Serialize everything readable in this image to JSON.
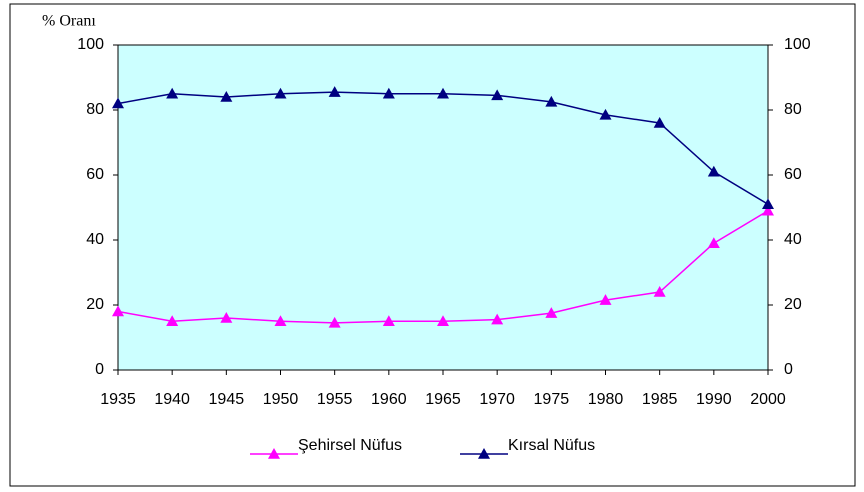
{
  "chart_data": {
    "type": "line",
    "y_label": "% Oranı",
    "categories": [
      "1935",
      "1940",
      "1945",
      "1950",
      "1955",
      "1960",
      "1965",
      "1970",
      "1975",
      "1980",
      "1985",
      "1990",
      "2000"
    ],
    "series": [
      {
        "name": "Şehirsel Nüfus",
        "color": "#ff00ff",
        "values": [
          18,
          15,
          16,
          15,
          14.5,
          15,
          15,
          15.5,
          17.5,
          21.5,
          24,
          39,
          49
        ]
      },
      {
        "name": "Kırsal Nüfus",
        "color": "#000080",
        "values": [
          82,
          85,
          84,
          85,
          85.5,
          85,
          85,
          84.5,
          82.5,
          78.5,
          76,
          61,
          51
        ]
      }
    ],
    "ylim": [
      0,
      100
    ],
    "yticks": [
      0,
      20,
      40,
      60,
      80,
      100
    ],
    "y2lim": [
      0,
      100
    ],
    "y2ticks": [
      0,
      20,
      40,
      60,
      80,
      100
    ],
    "plot_background": "#ccffff",
    "legend": "bottom"
  }
}
